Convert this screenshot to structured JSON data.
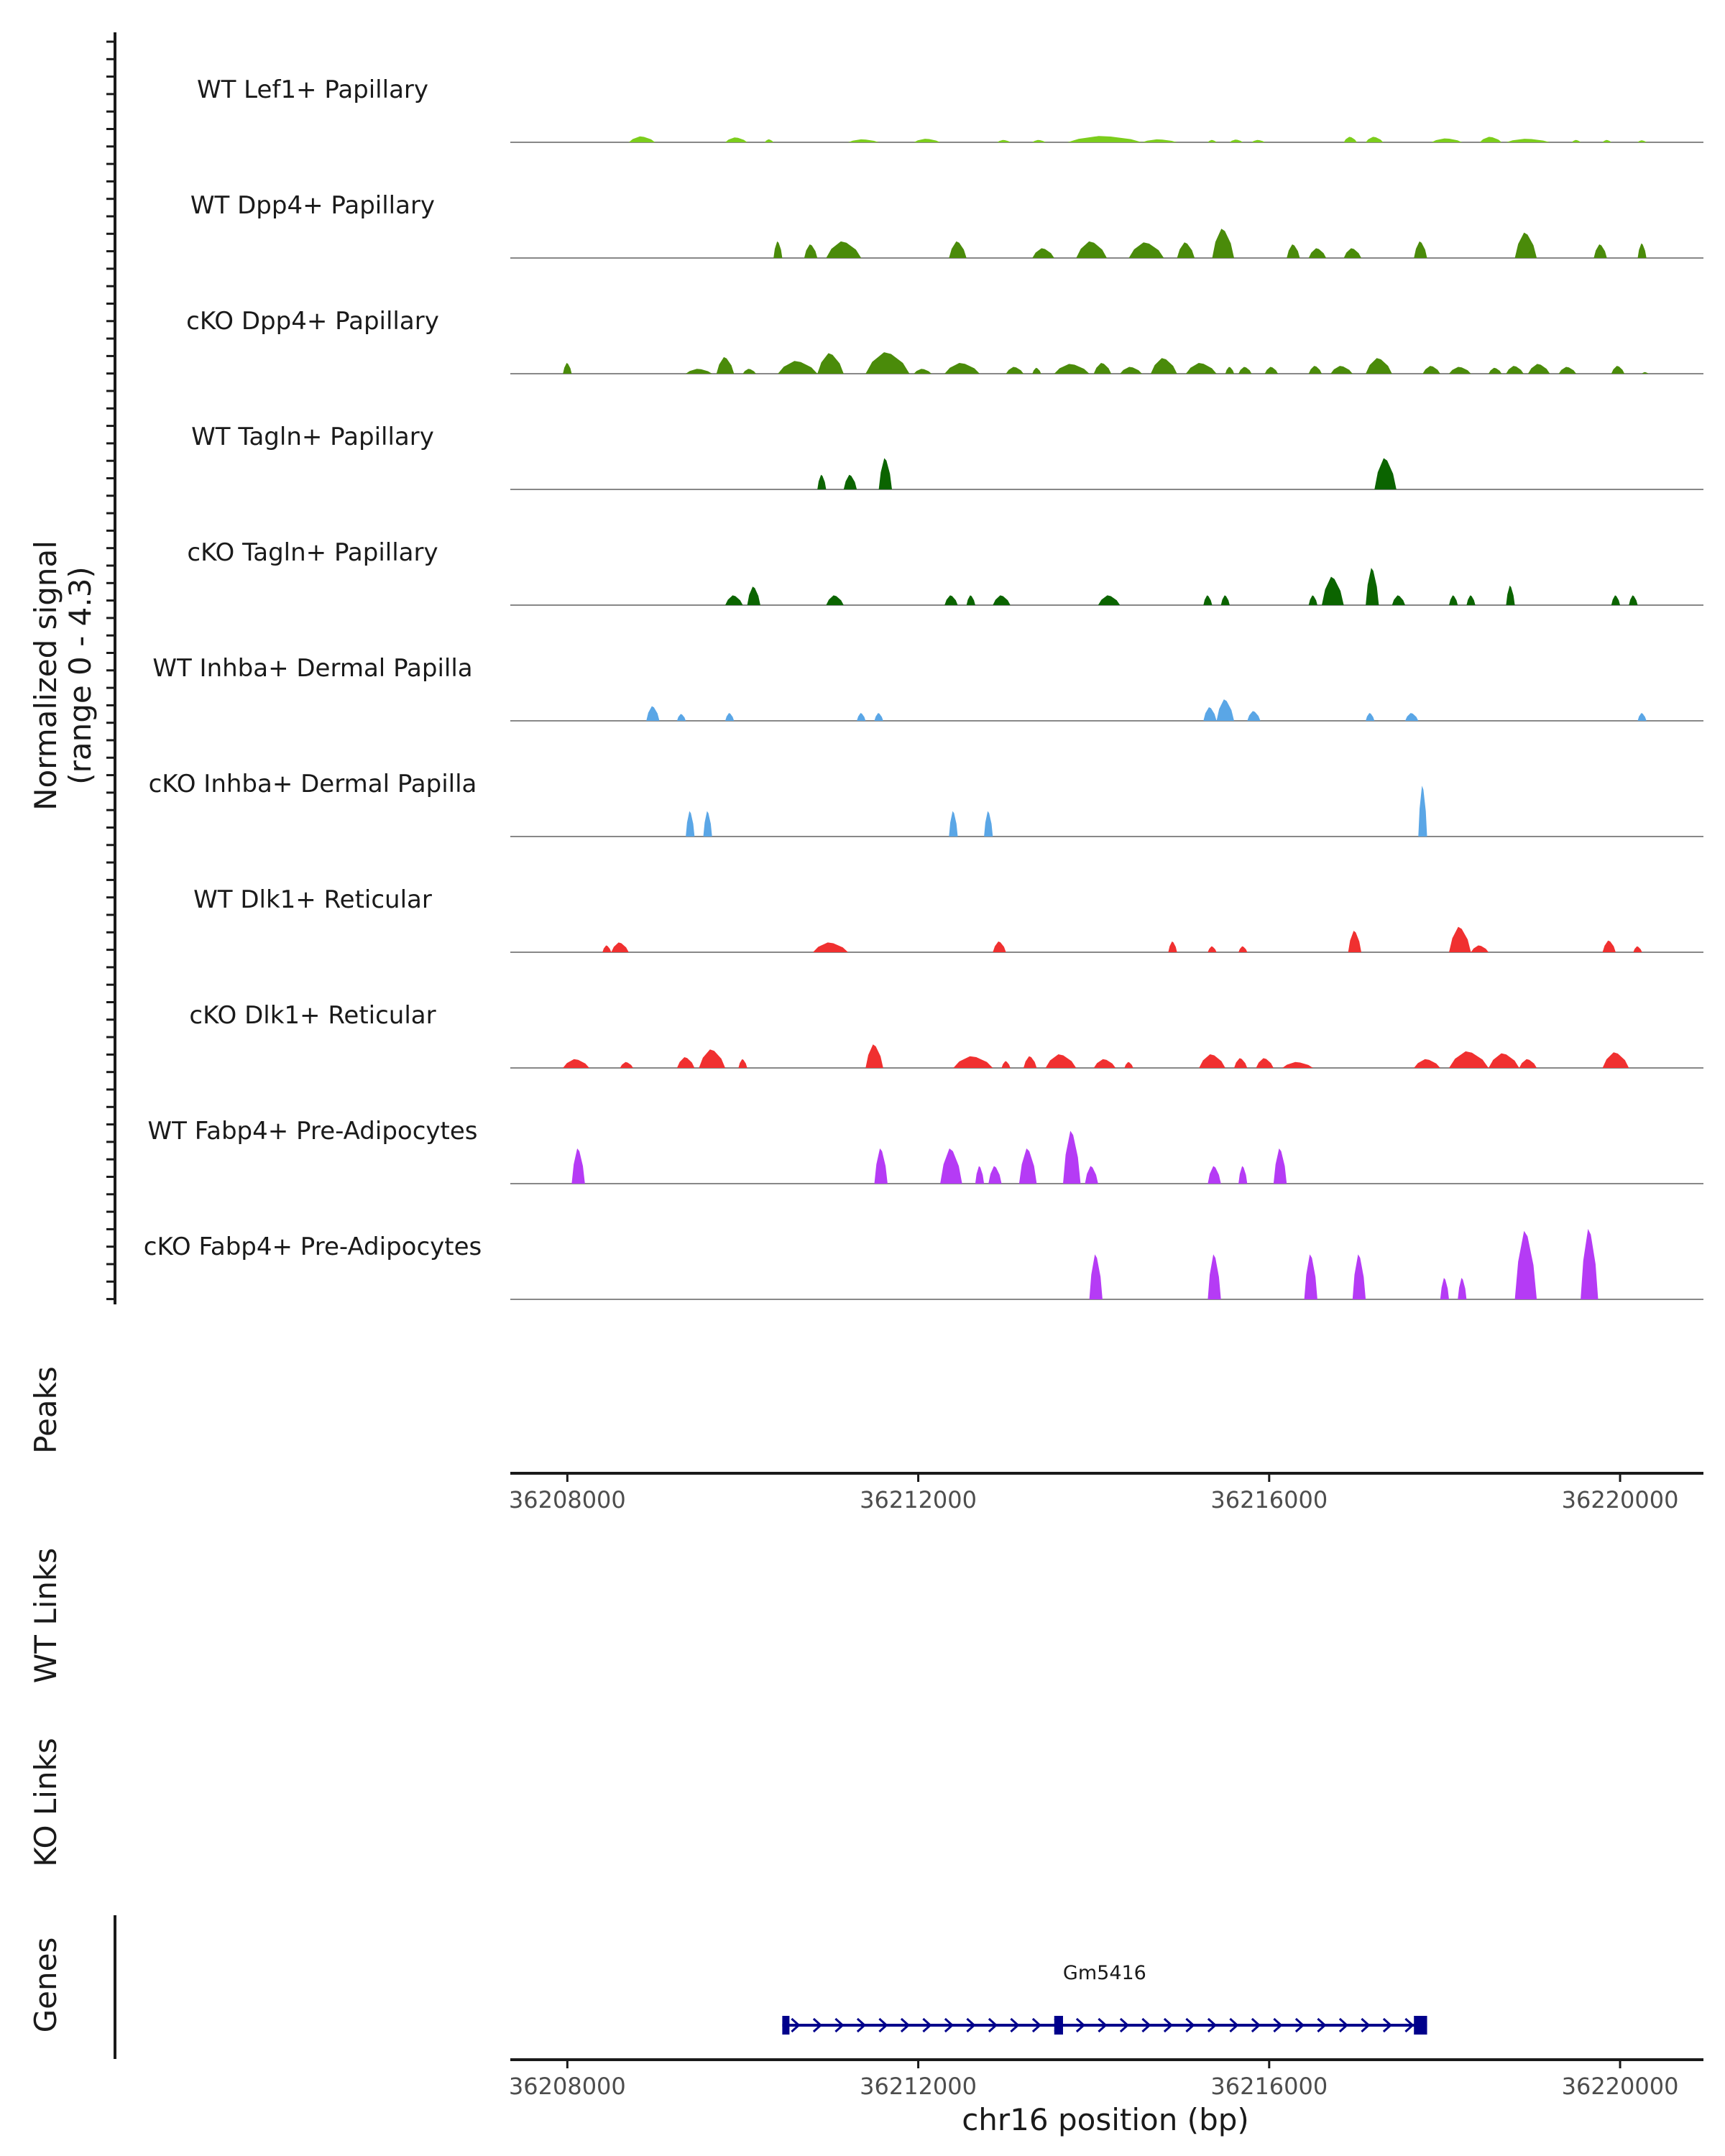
{
  "chart_data": {
    "type": "area",
    "title": "",
    "chromosome": "chr16",
    "xlabel": "chr16 position (bp)",
    "xlim": [
      36207350,
      36220950
    ],
    "xticks": [
      36208000,
      36212000,
      36216000,
      36220000
    ],
    "xtick_labels": [
      "36208000",
      "36212000",
      "36216000",
      "36220000"
    ],
    "coverage_ylabel": "Normalized signal",
    "coverage_ylabel2": "(range 0 - 4.3)",
    "ylim": [
      0,
      4.3
    ],
    "tracks": [
      {
        "name": "WT Lef1+ Papillary",
        "color": "#7CCD1C",
        "peaks": [
          {
            "s": 36208700,
            "e": 36209000,
            "h": 0.3
          },
          {
            "s": 36209800,
            "e": 36210050,
            "h": 0.25
          },
          {
            "s": 36210250,
            "e": 36210350,
            "h": 0.15
          },
          {
            "s": 36211200,
            "e": 36211550,
            "h": 0.15
          },
          {
            "s": 36211950,
            "e": 36212250,
            "h": 0.18
          },
          {
            "s": 36212900,
            "e": 36213050,
            "h": 0.12
          },
          {
            "s": 36213300,
            "e": 36213450,
            "h": 0.12
          },
          {
            "s": 36213700,
            "e": 36214550,
            "h": 0.32
          },
          {
            "s": 36214550,
            "e": 36214950,
            "h": 0.15
          },
          {
            "s": 36215300,
            "e": 36215400,
            "h": 0.12
          },
          {
            "s": 36215550,
            "e": 36215700,
            "h": 0.14
          },
          {
            "s": 36215800,
            "e": 36215950,
            "h": 0.12
          },
          {
            "s": 36216850,
            "e": 36217000,
            "h": 0.28
          },
          {
            "s": 36217100,
            "e": 36217300,
            "h": 0.28
          },
          {
            "s": 36217850,
            "e": 36218200,
            "h": 0.2
          },
          {
            "s": 36218400,
            "e": 36218650,
            "h": 0.28
          },
          {
            "s": 36218700,
            "e": 36219200,
            "h": 0.18
          },
          {
            "s": 36219450,
            "e": 36219550,
            "h": 0.12
          },
          {
            "s": 36219800,
            "e": 36219900,
            "h": 0.12
          },
          {
            "s": 36220200,
            "e": 36220300,
            "h": 0.1
          }
        ]
      },
      {
        "name": "WT Dpp4+ Papillary",
        "color": "#4A8B0A",
        "peaks": [
          {
            "s": 36210350,
            "e": 36210450,
            "h": 0.85
          },
          {
            "s": 36210700,
            "e": 36210850,
            "h": 0.7
          },
          {
            "s": 36210950,
            "e": 36211350,
            "h": 0.85
          },
          {
            "s": 36212350,
            "e": 36212550,
            "h": 0.85
          },
          {
            "s": 36213300,
            "e": 36213550,
            "h": 0.5
          },
          {
            "s": 36213800,
            "e": 36214150,
            "h": 0.85
          },
          {
            "s": 36214400,
            "e": 36214800,
            "h": 0.8
          },
          {
            "s": 36214950,
            "e": 36215150,
            "h": 0.8
          },
          {
            "s": 36215350,
            "e": 36215600,
            "h": 1.5
          },
          {
            "s": 36216200,
            "e": 36216350,
            "h": 0.7
          },
          {
            "s": 36216450,
            "e": 36216650,
            "h": 0.5
          },
          {
            "s": 36216850,
            "e": 36217050,
            "h": 0.5
          },
          {
            "s": 36217650,
            "e": 36217800,
            "h": 0.85
          },
          {
            "s": 36218800,
            "e": 36219050,
            "h": 1.3
          },
          {
            "s": 36219700,
            "e": 36219850,
            "h": 0.7
          },
          {
            "s": 36220200,
            "e": 36220300,
            "h": 0.75
          }
        ]
      },
      {
        "name": "cKO Dpp4+ Papillary",
        "color": "#4A8B0A",
        "peaks": [
          {
            "s": 36207950,
            "e": 36208050,
            "h": 0.55
          },
          {
            "s": 36209350,
            "e": 36209650,
            "h": 0.25
          },
          {
            "s": 36209700,
            "e": 36209900,
            "h": 0.85
          },
          {
            "s": 36210000,
            "e": 36210150,
            "h": 0.25
          },
          {
            "s": 36210400,
            "e": 36210850,
            "h": 0.65
          },
          {
            "s": 36210850,
            "e": 36211150,
            "h": 1.05
          },
          {
            "s": 36211400,
            "e": 36211900,
            "h": 1.1
          },
          {
            "s": 36211950,
            "e": 36212150,
            "h": 0.25
          },
          {
            "s": 36212300,
            "e": 36212700,
            "h": 0.55
          },
          {
            "s": 36213000,
            "e": 36213200,
            "h": 0.35
          },
          {
            "s": 36213300,
            "e": 36213400,
            "h": 0.3
          },
          {
            "s": 36213550,
            "e": 36213950,
            "h": 0.5
          },
          {
            "s": 36214000,
            "e": 36214200,
            "h": 0.55
          },
          {
            "s": 36214300,
            "e": 36214550,
            "h": 0.35
          },
          {
            "s": 36214650,
            "e": 36214950,
            "h": 0.8
          },
          {
            "s": 36215050,
            "e": 36215400,
            "h": 0.55
          },
          {
            "s": 36215500,
            "e": 36215600,
            "h": 0.35
          },
          {
            "s": 36215650,
            "e": 36215800,
            "h": 0.35
          },
          {
            "s": 36215950,
            "e": 36216100,
            "h": 0.35
          },
          {
            "s": 36216450,
            "e": 36216600,
            "h": 0.4
          },
          {
            "s": 36216700,
            "e": 36216950,
            "h": 0.4
          },
          {
            "s": 36217100,
            "e": 36217400,
            "h": 0.8
          },
          {
            "s": 36217750,
            "e": 36217950,
            "h": 0.4
          },
          {
            "s": 36218050,
            "e": 36218300,
            "h": 0.35
          },
          {
            "s": 36218500,
            "e": 36218650,
            "h": 0.3
          },
          {
            "s": 36218700,
            "e": 36218900,
            "h": 0.4
          },
          {
            "s": 36218950,
            "e": 36219200,
            "h": 0.5
          },
          {
            "s": 36219300,
            "e": 36219500,
            "h": 0.35
          },
          {
            "s": 36219900,
            "e": 36220050,
            "h": 0.4
          },
          {
            "s": 36220250,
            "e": 36220320,
            "h": 0.08
          }
        ]
      },
      {
        "name": "WT Tagln+ Papillary",
        "color": "#0B6400",
        "peaks": [
          {
            "s": 36210850,
            "e": 36210950,
            "h": 0.75
          },
          {
            "s": 36211150,
            "e": 36211300,
            "h": 0.75
          },
          {
            "s": 36211550,
            "e": 36211700,
            "h": 1.6
          },
          {
            "s": 36217200,
            "e": 36217450,
            "h": 1.6
          }
        ]
      },
      {
        "name": "cKO Tagln+ Papillary",
        "color": "#0B6400",
        "peaks": [
          {
            "s": 36209800,
            "e": 36210000,
            "h": 0.5
          },
          {
            "s": 36210050,
            "e": 36210200,
            "h": 0.95
          },
          {
            "s": 36210950,
            "e": 36211150,
            "h": 0.5
          },
          {
            "s": 36212300,
            "e": 36212450,
            "h": 0.5
          },
          {
            "s": 36212550,
            "e": 36212650,
            "h": 0.5
          },
          {
            "s": 36212850,
            "e": 36213050,
            "h": 0.5
          },
          {
            "s": 36214050,
            "e": 36214300,
            "h": 0.5
          },
          {
            "s": 36215250,
            "e": 36215350,
            "h": 0.5
          },
          {
            "s": 36215450,
            "e": 36215550,
            "h": 0.5
          },
          {
            "s": 36216450,
            "e": 36216550,
            "h": 0.5
          },
          {
            "s": 36216600,
            "e": 36216850,
            "h": 1.45
          },
          {
            "s": 36217100,
            "e": 36217250,
            "h": 1.9
          },
          {
            "s": 36217400,
            "e": 36217550,
            "h": 0.5
          },
          {
            "s": 36218050,
            "e": 36218150,
            "h": 0.5
          },
          {
            "s": 36218250,
            "e": 36218350,
            "h": 0.5
          },
          {
            "s": 36218700,
            "e": 36218800,
            "h": 1.0
          },
          {
            "s": 36219900,
            "e": 36220000,
            "h": 0.5
          },
          {
            "s": 36220100,
            "e": 36220200,
            "h": 0.5
          }
        ]
      },
      {
        "name": "WT Inhba+ Dermal Papilla",
        "color": "#5AA6E6",
        "peaks": [
          {
            "s": 36208900,
            "e": 36209050,
            "h": 0.75
          },
          {
            "s": 36209250,
            "e": 36209350,
            "h": 0.35
          },
          {
            "s": 36209800,
            "e": 36209900,
            "h": 0.4
          },
          {
            "s": 36211300,
            "e": 36211400,
            "h": 0.4
          },
          {
            "s": 36211500,
            "e": 36211600,
            "h": 0.4
          },
          {
            "s": 36215250,
            "e": 36215400,
            "h": 0.7
          },
          {
            "s": 36215400,
            "e": 36215600,
            "h": 1.1
          },
          {
            "s": 36215750,
            "e": 36215900,
            "h": 0.5
          },
          {
            "s": 36217100,
            "e": 36217200,
            "h": 0.4
          },
          {
            "s": 36217550,
            "e": 36217700,
            "h": 0.4
          },
          {
            "s": 36220200,
            "e": 36220300,
            "h": 0.4
          }
        ]
      },
      {
        "name": "cKO Inhba+ Dermal Papilla",
        "color": "#5AA6E6",
        "peaks": [
          {
            "s": 36209350,
            "e": 36209450,
            "h": 1.3
          },
          {
            "s": 36209550,
            "e": 36209650,
            "h": 1.3
          },
          {
            "s": 36212350,
            "e": 36212450,
            "h": 1.3
          },
          {
            "s": 36212750,
            "e": 36212850,
            "h": 1.3
          },
          {
            "s": 36217700,
            "e": 36217800,
            "h": 2.6
          }
        ]
      },
      {
        "name": "WT Dlk1+ Reticular",
        "color": "#F03030",
        "peaks": [
          {
            "s": 36208400,
            "e": 36208500,
            "h": 0.35
          },
          {
            "s": 36208500,
            "e": 36208700,
            "h": 0.5
          },
          {
            "s": 36210800,
            "e": 36211200,
            "h": 0.5
          },
          {
            "s": 36212850,
            "e": 36213000,
            "h": 0.55
          },
          {
            "s": 36214850,
            "e": 36214950,
            "h": 0.55
          },
          {
            "s": 36215300,
            "e": 36215400,
            "h": 0.3
          },
          {
            "s": 36215650,
            "e": 36215750,
            "h": 0.3
          },
          {
            "s": 36216900,
            "e": 36217050,
            "h": 1.1
          },
          {
            "s": 36218050,
            "e": 36218300,
            "h": 1.3
          },
          {
            "s": 36218300,
            "e": 36218500,
            "h": 0.35
          },
          {
            "s": 36219800,
            "e": 36219950,
            "h": 0.6
          },
          {
            "s": 36220150,
            "e": 36220250,
            "h": 0.3
          }
        ]
      },
      {
        "name": "cKO Dlk1+ Reticular",
        "color": "#F03030",
        "peaks": [
          {
            "s": 36207950,
            "e": 36208250,
            "h": 0.45
          },
          {
            "s": 36208600,
            "e": 36208750,
            "h": 0.3
          },
          {
            "s": 36209250,
            "e": 36209450,
            "h": 0.55
          },
          {
            "s": 36209500,
            "e": 36209800,
            "h": 0.95
          },
          {
            "s": 36209950,
            "e": 36210050,
            "h": 0.45
          },
          {
            "s": 36211400,
            "e": 36211600,
            "h": 1.2
          },
          {
            "s": 36212400,
            "e": 36212850,
            "h": 0.6
          },
          {
            "s": 36212950,
            "e": 36213050,
            "h": 0.35
          },
          {
            "s": 36213200,
            "e": 36213350,
            "h": 0.6
          },
          {
            "s": 36213450,
            "e": 36213800,
            "h": 0.7
          },
          {
            "s": 36214000,
            "e": 36214250,
            "h": 0.45
          },
          {
            "s": 36214350,
            "e": 36214450,
            "h": 0.3
          },
          {
            "s": 36215200,
            "e": 36215500,
            "h": 0.7
          },
          {
            "s": 36215600,
            "e": 36215750,
            "h": 0.5
          },
          {
            "s": 36215850,
            "e": 36216050,
            "h": 0.5
          },
          {
            "s": 36216150,
            "e": 36216500,
            "h": 0.3
          },
          {
            "s": 36217650,
            "e": 36217950,
            "h": 0.45
          },
          {
            "s": 36218050,
            "e": 36218500,
            "h": 0.85
          },
          {
            "s": 36218500,
            "e": 36218850,
            "h": 0.75
          },
          {
            "s": 36218850,
            "e": 36219050,
            "h": 0.45
          },
          {
            "s": 36219800,
            "e": 36220100,
            "h": 0.8
          }
        ]
      },
      {
        "name": "WT Fabp4+ Pre-Adipocytes",
        "color": "#B53BF5",
        "peaks": [
          {
            "s": 36208050,
            "e": 36208200,
            "h": 1.8
          },
          {
            "s": 36211500,
            "e": 36211650,
            "h": 1.8
          },
          {
            "s": 36212250,
            "e": 36212500,
            "h": 1.8
          },
          {
            "s": 36212650,
            "e": 36212750,
            "h": 0.9
          },
          {
            "s": 36212800,
            "e": 36212950,
            "h": 0.9
          },
          {
            "s": 36213150,
            "e": 36213350,
            "h": 1.8
          },
          {
            "s": 36213650,
            "e": 36213850,
            "h": 2.7
          },
          {
            "s": 36213900,
            "e": 36214050,
            "h": 0.9
          },
          {
            "s": 36215300,
            "e": 36215450,
            "h": 0.9
          },
          {
            "s": 36215650,
            "e": 36215750,
            "h": 0.9
          },
          {
            "s": 36216050,
            "e": 36216200,
            "h": 1.8
          }
        ]
      },
      {
        "name": "cKO Fabp4+ Pre-Adipocytes",
        "color": "#B53BF5",
        "peaks": [
          {
            "s": 36213950,
            "e": 36214100,
            "h": 2.3
          },
          {
            "s": 36215300,
            "e": 36215450,
            "h": 2.3
          },
          {
            "s": 36216400,
            "e": 36216550,
            "h": 2.3
          },
          {
            "s": 36216950,
            "e": 36217100,
            "h": 2.3
          },
          {
            "s": 36217950,
            "e": 36218050,
            "h": 1.1
          },
          {
            "s": 36218150,
            "e": 36218250,
            "h": 1.1
          },
          {
            "s": 36218800,
            "e": 36219050,
            "h": 3.5
          },
          {
            "s": 36219550,
            "e": 36219750,
            "h": 3.6
          }
        ]
      }
    ],
    "panels": {
      "peaks_label": "Peaks",
      "wt_links_label": "WT Links",
      "ko_links_label": "KO Links",
      "genes_label": "Genes"
    },
    "gene": {
      "name": "Gm5416",
      "start": 36210450,
      "end": 36217800,
      "strand": "+",
      "exons": [
        [
          36210450,
          36210530
        ],
        [
          36213550,
          36213650
        ],
        [
          36217650,
          36217800
        ]
      ],
      "color": "#00008B"
    }
  }
}
